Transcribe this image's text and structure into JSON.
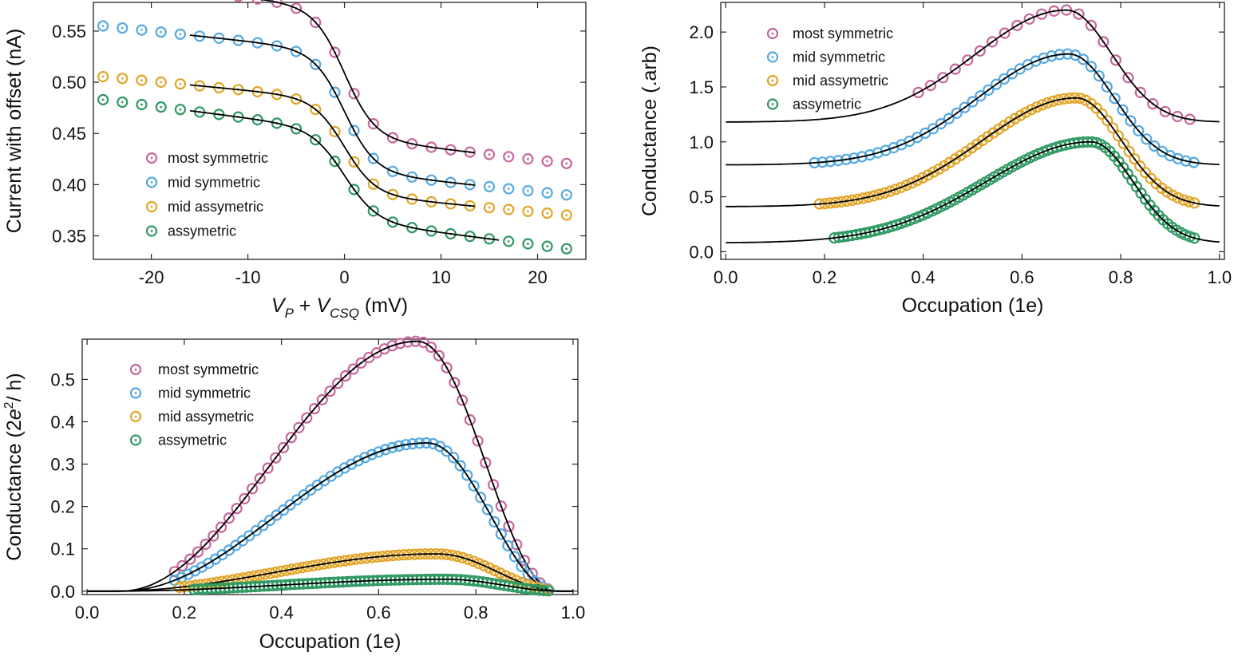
{
  "colors": {
    "most_symmetric": "#c7679d",
    "mid_symmetric": "#56a9e0",
    "mid_assymetric": "#e2a528",
    "assymetric": "#2f9963",
    "fit": "#000000"
  },
  "chart_data": [
    {
      "type": "scatter",
      "title": "",
      "xlabel_parts": [
        "V",
        "P",
        " + ",
        "V",
        "CSQ",
        " (mV)"
      ],
      "ylabel": "Current with offset (nA)",
      "xlim": [
        -26,
        25
      ],
      "ylim": [
        0.327,
        0.578
      ],
      "xticks": [
        -20,
        -10,
        0,
        10,
        20
      ],
      "xtick_labels": [
        "-20",
        "-10",
        "0",
        "10",
        "20"
      ],
      "yticks": [
        0.35,
        0.4,
        0.45,
        0.5,
        0.55
      ],
      "ytick_labels": [
        "0.35",
        "0.40",
        "0.45",
        "0.50",
        "0.55"
      ],
      "legend": {
        "placement": "lower-left",
        "entries": [
          "most symmetric",
          "mid symmetric",
          "mid assymetric",
          "assymetric"
        ]
      },
      "model": "step",
      "series": [
        {
          "name": "most symmetric",
          "color_key": "most_symmetric",
          "high": 0.572,
          "low": 0.446,
          "tail": -0.0011,
          "width": 1.6,
          "x_range": [
            -25,
            24
          ],
          "step": 2,
          "fit_range": [
            -15,
            13.5
          ]
        },
        {
          "name": "mid symmetric",
          "color_key": "mid_symmetric",
          "high": 0.53,
          "low": 0.413,
          "tail": -0.001,
          "width": 1.6,
          "x_range": [
            -25,
            24
          ],
          "step": 2,
          "fit_range": [
            -16,
            13.5
          ]
        },
        {
          "name": "mid assymetric",
          "color_key": "mid_assymetric",
          "high": 0.483,
          "low": 0.391,
          "tail": -0.0009,
          "width": 1.6,
          "x_range": [
            -25,
            24
          ],
          "step": 2,
          "fit_range": [
            -16,
            13.5
          ]
        },
        {
          "name": "assymetric",
          "color_key": "assymetric",
          "high": 0.453,
          "low": 0.365,
          "tail": -0.0012,
          "width": 1.7,
          "x_range": [
            -25,
            24
          ],
          "step": 2,
          "fit_range": [
            -16,
            16
          ]
        }
      ]
    },
    {
      "type": "scatter",
      "title": "",
      "xlabel": "Occupation (1e)",
      "ylabel": "Conductance (.arb)",
      "xlim": [
        -0.01,
        1.01
      ],
      "ylim": [
        -0.07,
        2.27
      ],
      "xticks": [
        0.0,
        0.2,
        0.4,
        0.6,
        0.8,
        1.0
      ],
      "xtick_labels": [
        "0.0",
        "0.2",
        "0.4",
        "0.6",
        "0.8",
        "1.0"
      ],
      "yticks": [
        0.0,
        0.5,
        1.0,
        1.5,
        2.0
      ],
      "ytick_labels": [
        "0.0",
        "0.5",
        "1.0",
        "1.5",
        "2.0"
      ],
      "legend": {
        "placement": "upper-left",
        "entries": [
          "most symmetric",
          "mid symmetric",
          "mid assymetric",
          "assymetric"
        ]
      },
      "model": "hump",
      "series": [
        {
          "name": "most symmetric",
          "color_key": "most_symmetric",
          "base": 1.18,
          "amp": 1.02,
          "peak": 0.69,
          "wl": 0.26,
          "wr": 0.13,
          "x_range": [
            0.39,
            0.95
          ],
          "step": 0.025,
          "fit_range": [
            0.0,
            1.0
          ]
        },
        {
          "name": "mid symmetric",
          "color_key": "mid_symmetric",
          "base": 0.79,
          "amp": 1.01,
          "peak": 0.695,
          "wl": 0.26,
          "wr": 0.13,
          "x_range": [
            0.18,
            0.95
          ],
          "step": 0.016,
          "fit_range": [
            0.0,
            1.0
          ]
        },
        {
          "name": "mid assymetric",
          "color_key": "mid_assymetric",
          "base": 0.41,
          "amp": 0.99,
          "peak": 0.71,
          "wl": 0.27,
          "wr": 0.13,
          "x_range": [
            0.19,
            0.955
          ],
          "step": 0.011,
          "fit_range": [
            0.0,
            1.0
          ]
        },
        {
          "name": "assymetric",
          "color_key": "assymetric",
          "base": 0.08,
          "amp": 0.92,
          "peak": 0.74,
          "wl": 0.3,
          "wr": 0.12,
          "x_range": [
            0.22,
            0.955
          ],
          "step": 0.009,
          "fit_range": [
            0.0,
            1.0
          ]
        }
      ]
    },
    {
      "type": "scatter",
      "title": "",
      "xlabel": "Occupation (1e)",
      "ylabel_parts": [
        "Conductance (2",
        "e",
        "2",
        "/ h)"
      ],
      "xlim": [
        -0.01,
        1.01
      ],
      "ylim": [
        -0.008,
        0.595
      ],
      "xticks": [
        0.0,
        0.2,
        0.4,
        0.6,
        0.8,
        1.0
      ],
      "xtick_labels": [
        "0.0",
        "0.2",
        "0.4",
        "0.6",
        "0.8",
        "1.0"
      ],
      "yticks": [
        0.0,
        0.1,
        0.2,
        0.3,
        0.4,
        0.5
      ],
      "ytick_labels": [
        "0.0",
        "0.1",
        "0.2",
        "0.3",
        "0.4",
        "0.5"
      ],
      "legend": {
        "placement": "upper-left",
        "entries": [
          "most symmetric",
          "mid symmetric",
          "mid assymetric",
          "assymetric"
        ]
      },
      "model": "peak",
      "series": [
        {
          "name": "most symmetric",
          "color_key": "most_symmetric",
          "amp": 0.59,
          "peak": 0.68,
          "x0": 0.07,
          "x1": 0.965,
          "x_range": [
            0.18,
            0.95
          ],
          "step": 0.016,
          "fit_range": [
            0.0,
            1.0
          ]
        },
        {
          "name": "mid symmetric",
          "color_key": "mid_symmetric",
          "amp": 0.35,
          "peak": 0.7,
          "x0": 0.07,
          "x1": 0.965,
          "x_range": [
            0.18,
            0.95
          ],
          "step": 0.014,
          "fit_range": [
            0.0,
            1.0
          ]
        },
        {
          "name": "mid assymetric",
          "color_key": "mid_assymetric",
          "amp": 0.088,
          "peak": 0.72,
          "x0": 0.05,
          "x1": 0.975,
          "x_range": [
            0.19,
            0.955
          ],
          "step": 0.011,
          "fit_range": [
            0.0,
            1.0
          ]
        },
        {
          "name": "assymetric",
          "color_key": "assymetric",
          "amp": 0.028,
          "peak": 0.74,
          "x0": 0.05,
          "x1": 0.975,
          "x_range": [
            0.22,
            0.955
          ],
          "step": 0.009,
          "fit_range": [
            0.0,
            1.0
          ]
        }
      ]
    }
  ]
}
